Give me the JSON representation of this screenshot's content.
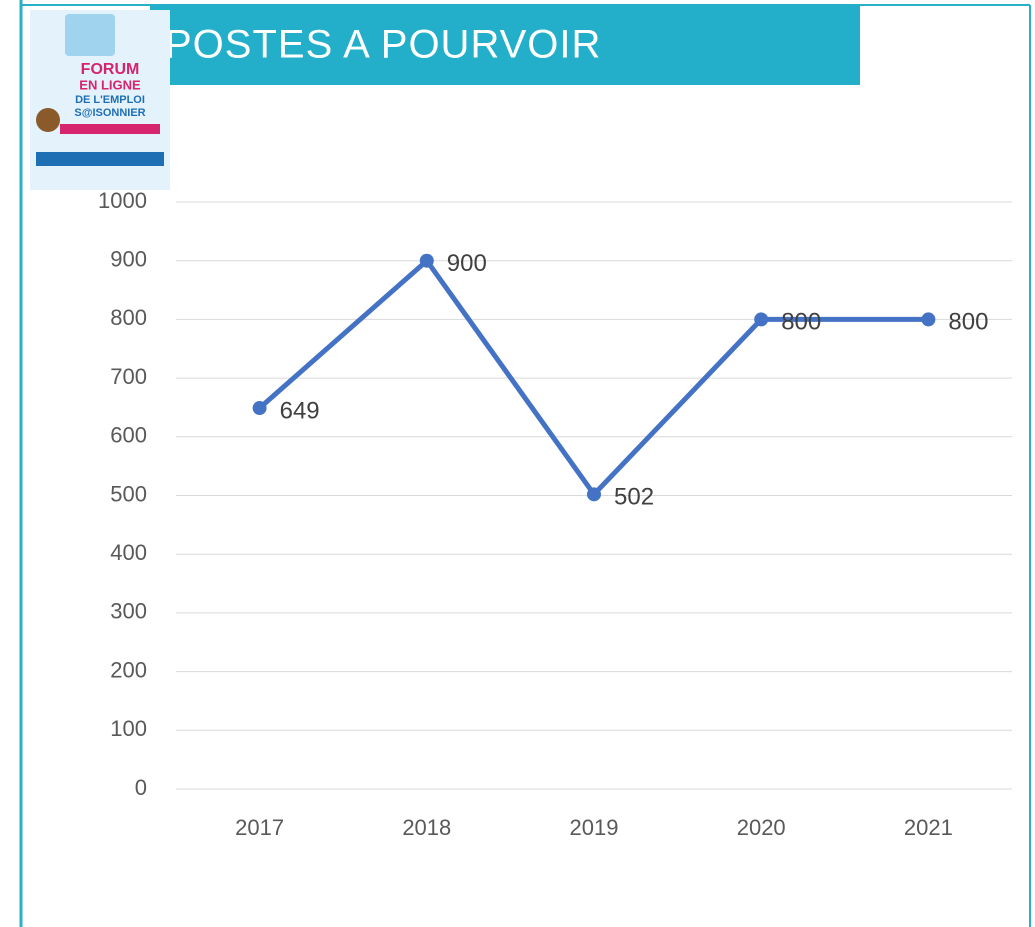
{
  "header": {
    "title": "POSTES A POURVOIR"
  },
  "poster": {
    "lines": [
      "FORUM",
      "EN LIGNE",
      "DE L'EMPLOI",
      "S@ISONNIER"
    ]
  },
  "chart_data": {
    "type": "line",
    "categories": [
      "2017",
      "2018",
      "2019",
      "2020",
      "2021"
    ],
    "values": [
      649,
      900,
      502,
      800,
      800
    ],
    "color": "#4472c4",
    "ylim": [
      0,
      1000
    ],
    "yticks": [
      0,
      100,
      200,
      300,
      400,
      500,
      600,
      700,
      800,
      900,
      1000
    ],
    "grid": true,
    "data_labels": true
  }
}
